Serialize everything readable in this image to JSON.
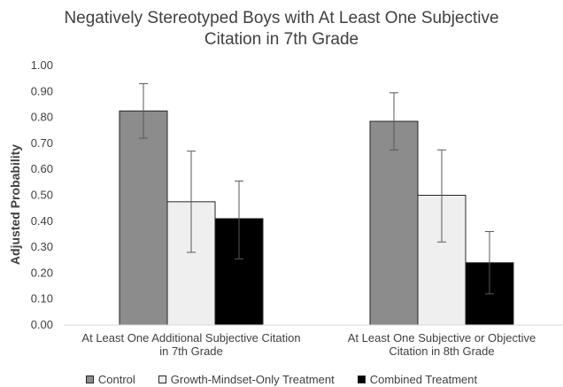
{
  "chart_data": {
    "type": "bar",
    "title_lines": [
      "Negatively Stereotyped Boys with At Least One Subjective",
      "Citation in 7th Grade"
    ],
    "ylabel": "Adjusted Probability",
    "xlabel": "",
    "ylim": [
      0,
      1
    ],
    "yticks": [
      "0.00",
      "0.10",
      "0.20",
      "0.30",
      "0.40",
      "0.50",
      "0.60",
      "0.70",
      "0.80",
      "0.90",
      "1.00"
    ],
    "categories": [
      [
        "At Least One Additional Subjective Citation",
        "in 7th Grade"
      ],
      [
        "At Least One Subjective or Objective",
        "Citation in 8th Grade"
      ]
    ],
    "series": [
      {
        "name": "Control",
        "color": "#8c8c8c",
        "values": [
          0.825,
          0.785
        ],
        "err_low": [
          0.72,
          0.675
        ],
        "err_high": [
          0.93,
          0.895
        ]
      },
      {
        "name": "Growth-Mindset-Only Treatment",
        "color": "#efefef",
        "values": [
          0.475,
          0.5
        ],
        "err_low": [
          0.28,
          0.32
        ],
        "err_high": [
          0.67,
          0.675
        ]
      },
      {
        "name": "Combined Treatment",
        "color": "#000000",
        "values": [
          0.41,
          0.24
        ],
        "err_low": [
          0.255,
          0.12
        ],
        "err_high": [
          0.555,
          0.36
        ]
      }
    ],
    "grid": false,
    "legend_position": "bottom"
  }
}
